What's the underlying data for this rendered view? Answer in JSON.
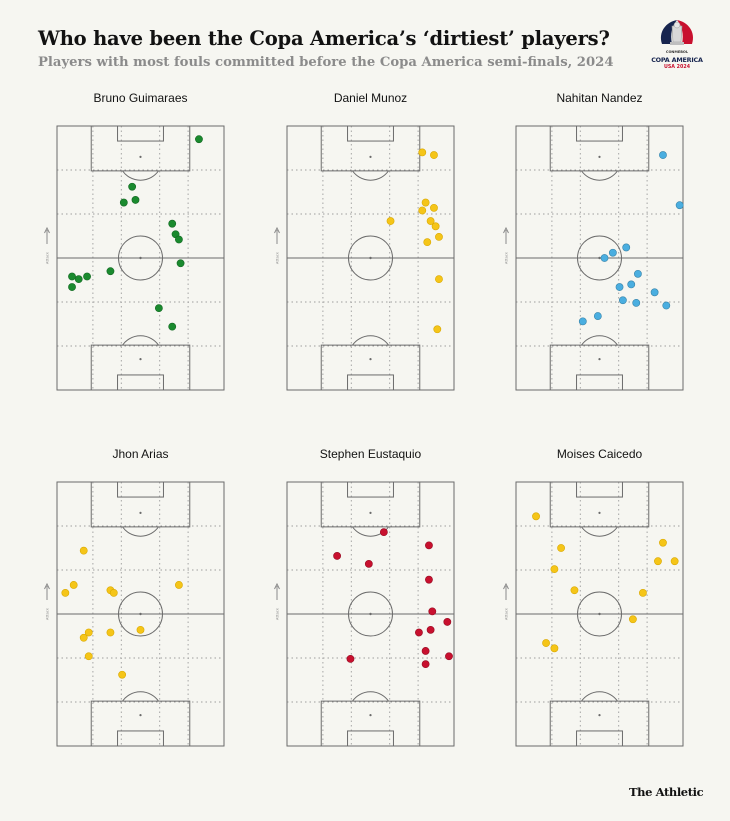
{
  "title": "Who have been the Copa America’s ‘dirtiest’ players?",
  "subtitle": "Players with most fouls committed before the Copa America semi-finals, 2024",
  "logo": {
    "small": "CONMEBOL",
    "main": "COPA AMERICA",
    "sub": "USA 2024"
  },
  "footer": "The Athletic",
  "colors": {
    "green": "#1a8a2e",
    "yellow": "#f5c518",
    "blue": "#4aaee0",
    "red": "#c8102e"
  },
  "chart_data": {
    "type": "scatter",
    "attack_label": "Attack",
    "pitch": {
      "x_range": [
        0,
        100
      ],
      "y_range": [
        0,
        100
      ],
      "note": "x = across pitch (left to right), y = length of pitch, attacking upward"
    },
    "panels": [
      {
        "player": "Bruno Guimaraes",
        "color": "#1a8a2e",
        "points": [
          {
            "x": 85,
            "y": 95
          },
          {
            "x": 45,
            "y": 77
          },
          {
            "x": 47,
            "y": 72
          },
          {
            "x": 40,
            "y": 71
          },
          {
            "x": 69,
            "y": 63
          },
          {
            "x": 71,
            "y": 59
          },
          {
            "x": 73,
            "y": 57
          },
          {
            "x": 74,
            "y": 48
          },
          {
            "x": 32,
            "y": 45
          },
          {
            "x": 18,
            "y": 43
          },
          {
            "x": 9,
            "y": 43
          },
          {
            "x": 13,
            "y": 42
          },
          {
            "x": 9,
            "y": 39
          },
          {
            "x": 61,
            "y": 31
          },
          {
            "x": 69,
            "y": 24
          }
        ]
      },
      {
        "player": "Daniel Munoz",
        "color": "#f5c518",
        "points": [
          {
            "x": 81,
            "y": 90
          },
          {
            "x": 88,
            "y": 89
          },
          {
            "x": 83,
            "y": 71
          },
          {
            "x": 81,
            "y": 68
          },
          {
            "x": 88,
            "y": 69
          },
          {
            "x": 86,
            "y": 64
          },
          {
            "x": 62,
            "y": 64
          },
          {
            "x": 89,
            "y": 62
          },
          {
            "x": 91,
            "y": 58
          },
          {
            "x": 84,
            "y": 56
          },
          {
            "x": 91,
            "y": 42
          },
          {
            "x": 90,
            "y": 23
          }
        ]
      },
      {
        "player": "Nahitan Nandez",
        "color": "#4aaee0",
        "points": [
          {
            "x": 88,
            "y": 89
          },
          {
            "x": 98,
            "y": 70
          },
          {
            "x": 66,
            "y": 54
          },
          {
            "x": 58,
            "y": 52
          },
          {
            "x": 53,
            "y": 50
          },
          {
            "x": 73,
            "y": 44
          },
          {
            "x": 69,
            "y": 40
          },
          {
            "x": 62,
            "y": 39
          },
          {
            "x": 64,
            "y": 34
          },
          {
            "x": 83,
            "y": 37
          },
          {
            "x": 72,
            "y": 33
          },
          {
            "x": 90,
            "y": 32
          },
          {
            "x": 49,
            "y": 28
          },
          {
            "x": 40,
            "y": 26
          }
        ]
      },
      {
        "player": "Jhon Arias",
        "color": "#f5c518",
        "points": [
          {
            "x": 16,
            "y": 74
          },
          {
            "x": 10,
            "y": 61
          },
          {
            "x": 5,
            "y": 58
          },
          {
            "x": 32,
            "y": 59
          },
          {
            "x": 34,
            "y": 58
          },
          {
            "x": 73,
            "y": 61
          },
          {
            "x": 50,
            "y": 44
          },
          {
            "x": 19,
            "y": 43
          },
          {
            "x": 16,
            "y": 41
          },
          {
            "x": 32,
            "y": 43
          },
          {
            "x": 19,
            "y": 34
          },
          {
            "x": 39,
            "y": 27
          }
        ]
      },
      {
        "player": "Stephen Eustaquio",
        "color": "#c8102e",
        "points": [
          {
            "x": 58,
            "y": 81
          },
          {
            "x": 85,
            "y": 76
          },
          {
            "x": 30,
            "y": 72
          },
          {
            "x": 49,
            "y": 69
          },
          {
            "x": 85,
            "y": 63
          },
          {
            "x": 87,
            "y": 51
          },
          {
            "x": 96,
            "y": 47
          },
          {
            "x": 86,
            "y": 44
          },
          {
            "x": 79,
            "y": 43
          },
          {
            "x": 83,
            "y": 36
          },
          {
            "x": 97,
            "y": 34
          },
          {
            "x": 38,
            "y": 33
          },
          {
            "x": 83,
            "y": 31
          }
        ]
      },
      {
        "player": "Moises Caicedo",
        "color": "#f5c518",
        "points": [
          {
            "x": 12,
            "y": 87
          },
          {
            "x": 27,
            "y": 75
          },
          {
            "x": 23,
            "y": 67
          },
          {
            "x": 88,
            "y": 77
          },
          {
            "x": 85,
            "y": 70
          },
          {
            "x": 95,
            "y": 70
          },
          {
            "x": 35,
            "y": 59
          },
          {
            "x": 76,
            "y": 58
          },
          {
            "x": 70,
            "y": 48
          },
          {
            "x": 18,
            "y": 39
          },
          {
            "x": 23,
            "y": 37
          }
        ]
      }
    ]
  }
}
